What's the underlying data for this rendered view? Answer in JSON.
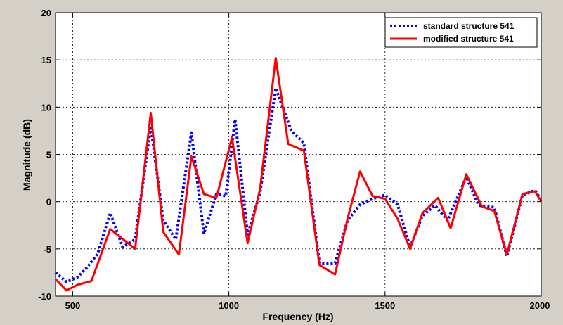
{
  "colors": {
    "figure_background": "#d4d0c8",
    "axes_background": "#ffffff",
    "standard_series": "#0000ff",
    "modified_series": "#ff0000"
  },
  "chart_data": {
    "type": "line",
    "title": "",
    "xlabel": "Frequency (Hz)",
    "ylabel": "Magnitude (dB)",
    "xlim": [
      445,
      2000
    ],
    "ylim": [
      -10,
      20
    ],
    "xticks": [
      500,
      1000,
      1500,
      2000
    ],
    "yticks": [
      -10,
      -5,
      0,
      5,
      10,
      15,
      20
    ],
    "xtick_labels": [
      "500",
      "1000",
      "1500",
      "2000"
    ],
    "ytick_labels": [
      "-10",
      "-5",
      "0",
      "5",
      "10",
      "15",
      "20"
    ],
    "grid": true,
    "legend_position": "top-right",
    "series": [
      {
        "name": "standard structure 541",
        "color": "#0000ff",
        "style": "dotted",
        "points": [
          [
            445,
            -7.5
          ],
          [
            480,
            -8.5
          ],
          [
            515,
            -8.0
          ],
          [
            545,
            -7.0
          ],
          [
            580,
            -5.5
          ],
          [
            620,
            -1.2
          ],
          [
            660,
            -4.8
          ],
          [
            700,
            -4.0
          ],
          [
            750,
            8.0
          ],
          [
            790,
            -2.0
          ],
          [
            830,
            -4.0
          ],
          [
            880,
            7.3
          ],
          [
            920,
            -3.4
          ],
          [
            960,
            0.8
          ],
          [
            990,
            0.6
          ],
          [
            1020,
            8.7
          ],
          [
            1060,
            -3.5
          ],
          [
            1100,
            1.0
          ],
          [
            1150,
            12.0
          ],
          [
            1200,
            7.5
          ],
          [
            1240,
            6.2
          ],
          [
            1290,
            -6.5
          ],
          [
            1340,
            -6.5
          ],
          [
            1380,
            -2.0
          ],
          [
            1420,
            -0.3
          ],
          [
            1460,
            0.3
          ],
          [
            1500,
            0.7
          ],
          [
            1540,
            -0.3
          ],
          [
            1580,
            -4.8
          ],
          [
            1620,
            -1.5
          ],
          [
            1660,
            -0.4
          ],
          [
            1700,
            -2.0
          ],
          [
            1760,
            2.6
          ],
          [
            1800,
            -0.4
          ],
          [
            1850,
            -0.6
          ],
          [
            1890,
            -5.8
          ],
          [
            1940,
            0.7
          ],
          [
            1980,
            1.2
          ],
          [
            2000,
            0.1
          ]
        ]
      },
      {
        "name": "modified structure 541",
        "color": "#ff0000",
        "style": "solid",
        "points": [
          [
            445,
            -8.2
          ],
          [
            480,
            -9.4
          ],
          [
            515,
            -8.8
          ],
          [
            560,
            -8.4
          ],
          [
            620,
            -2.9
          ],
          [
            700,
            -5.0
          ],
          [
            750,
            9.4
          ],
          [
            790,
            -3.2
          ],
          [
            840,
            -5.6
          ],
          [
            880,
            4.8
          ],
          [
            920,
            0.8
          ],
          [
            960,
            0.4
          ],
          [
            1010,
            6.8
          ],
          [
            1060,
            -4.4
          ],
          [
            1100,
            1.4
          ],
          [
            1150,
            15.2
          ],
          [
            1190,
            6.1
          ],
          [
            1240,
            5.4
          ],
          [
            1290,
            -6.7
          ],
          [
            1340,
            -7.7
          ],
          [
            1380,
            -1.8
          ],
          [
            1420,
            3.2
          ],
          [
            1460,
            0.6
          ],
          [
            1500,
            0.3
          ],
          [
            1540,
            -1.8
          ],
          [
            1580,
            -5.0
          ],
          [
            1620,
            -1.2
          ],
          [
            1670,
            0.4
          ],
          [
            1710,
            -2.8
          ],
          [
            1760,
            2.9
          ],
          [
            1810,
            -0.5
          ],
          [
            1850,
            -1.0
          ],
          [
            1890,
            -5.6
          ],
          [
            1940,
            0.8
          ],
          [
            1980,
            1.1
          ],
          [
            2000,
            0.0
          ]
        ]
      }
    ]
  }
}
